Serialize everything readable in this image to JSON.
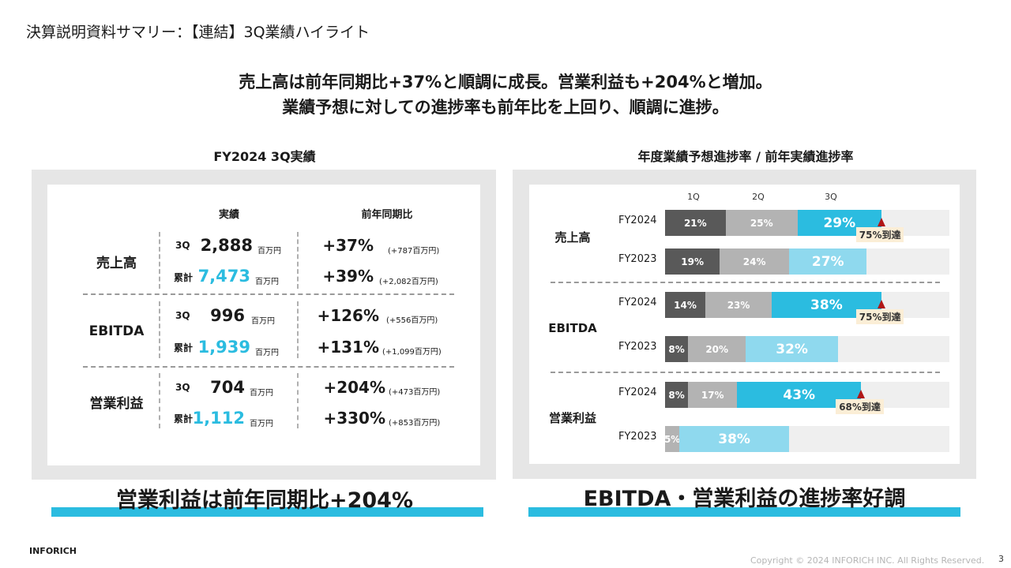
{
  "page_title": "決算説明資料サマリー：【連結】3Q業績ハイライト",
  "headline": {
    "line1": "売上高は前年同期比+37%と順調に成長。営業利益も+204%と増加。",
    "line2": "業績予想に対しての進捗率も前年比を上回り、順調に進捗。"
  },
  "left_panel": {
    "title": "FY2024 3Q実績",
    "col_actual": "実績",
    "col_yoy": "前年同期比",
    "unit": "百万円",
    "rows": [
      {
        "name": "売上高",
        "q3": {
          "tag": "3Q",
          "value": "2,888",
          "yoy": "+37%",
          "yoy_detail": "(+787百万円)"
        },
        "cum": {
          "tag": "累計",
          "value": "7,473",
          "yoy": "+39%",
          "yoy_detail": "(+2,082百万円)"
        }
      },
      {
        "name": "EBITDA",
        "q3": {
          "tag": "3Q",
          "value": "996",
          "yoy": "+126%",
          "yoy_detail": "(+556百万円)"
        },
        "cum": {
          "tag": "累計",
          "value": "1,939",
          "yoy": "+131%",
          "yoy_detail": "(+1,099百万円)"
        }
      },
      {
        "name": "営業利益",
        "q3": {
          "tag": "3Q",
          "value": "704",
          "yoy": "+204%",
          "yoy_detail": "(+473百万円)"
        },
        "cum": {
          "tag": "累計",
          "value": "1,112",
          "yoy": "+330%",
          "yoy_detail": "(+853百万円)"
        }
      }
    ],
    "conclusion": "営業利益は前年同期比+204%"
  },
  "right_panel": {
    "title": "年度業績予想進捗率 / 前年実績進捗率",
    "quarters": [
      "1Q",
      "2Q",
      "3Q"
    ],
    "metrics": [
      {
        "name": "売上高",
        "bars": [
          {
            "label": "FY2024",
            "segments": [
              21,
              25,
              29
            ],
            "segment_labels": [
              "21%",
              "25%",
              "29%"
            ],
            "achievement": "75%到達"
          },
          {
            "label": "FY2023",
            "segments": [
              19,
              24,
              27
            ],
            "segment_labels": [
              "19%",
              "24%",
              "27%"
            ]
          }
        ]
      },
      {
        "name": "EBITDA",
        "bars": [
          {
            "label": "FY2024",
            "segments": [
              14,
              23,
              38
            ],
            "segment_labels": [
              "14%",
              "23%",
              "38%"
            ],
            "achievement": "75%到達"
          },
          {
            "label": "FY2023",
            "segments": [
              8,
              20,
              32
            ],
            "segment_labels": [
              "8%",
              "20%",
              "32%"
            ]
          }
        ]
      },
      {
        "name": "営業利益",
        "bars": [
          {
            "label": "FY2024",
            "segments": [
              8,
              17,
              43
            ],
            "segment_labels": [
              "8%",
              "17%",
              "43%"
            ],
            "achievement": "68%到達"
          },
          {
            "label": "FY2023",
            "segments": [
              0,
              5,
              38
            ],
            "segment_labels": [
              "",
              "5%",
              "38%"
            ]
          }
        ]
      }
    ],
    "conclusion": "EBITDA・営業利益の進捗率好調"
  },
  "footer": {
    "brand": "INFORICH",
    "copyright": "Copyright © 2024 INFORICH INC. All Rights Reserved.",
    "page_number": "3"
  },
  "colors": {
    "accent": "#2bbce0",
    "q1": "#595959",
    "q2": "#b3b3b3",
    "q3_prior": "#8fd9ee",
    "marker": "#b01717"
  }
}
